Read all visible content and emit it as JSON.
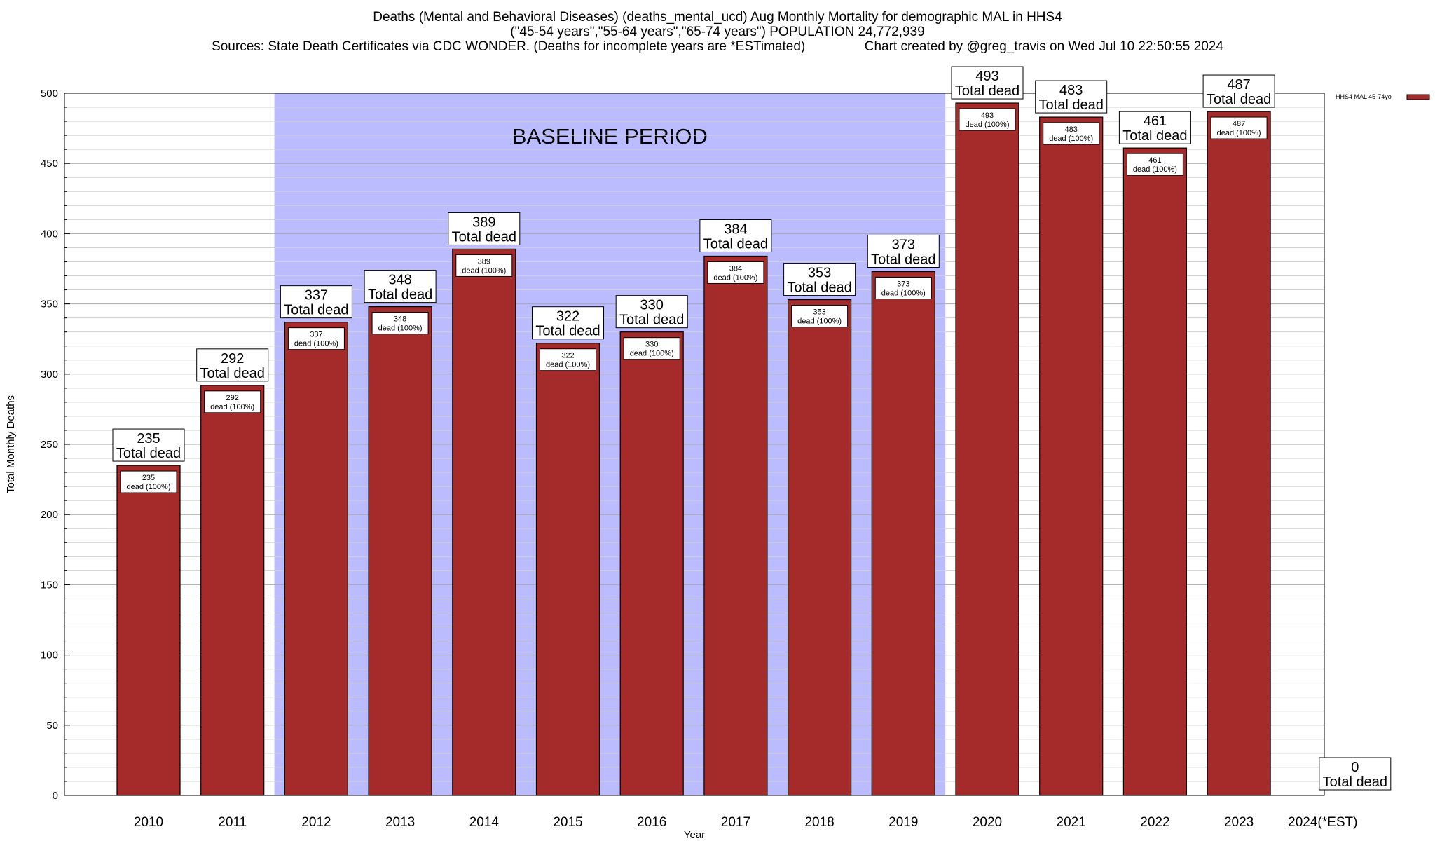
{
  "header": {
    "title_line1": "Deaths (Mental and Behavioral Diseases) (deaths_mental_ucd) Aug Monthly Mortality for demographic MAL in HHS4",
    "title_line2": "(\"45-54 years\",\"55-64 years\",\"65-74 years\") POPULATION 24,772,939",
    "title_line3": "Sources: State Death Certificates via CDC WONDER. (Deaths for incomplete years are *ESTimated)                Chart created by @greg_travis on Wed Jul 10 22:50:55 2024"
  },
  "chart_data": {
    "type": "bar",
    "xlabel": "Year",
    "ylabel": "Total Monthly Deaths",
    "ylim": [
      0,
      500
    ],
    "y_ticks": [
      0,
      50,
      100,
      150,
      200,
      250,
      300,
      350,
      400,
      450,
      500
    ],
    "categories": [
      "2010",
      "2011",
      "2012",
      "2013",
      "2014",
      "2015",
      "2016",
      "2017",
      "2018",
      "2019",
      "2020",
      "2021",
      "2022",
      "2023",
      "2024(*EST)"
    ],
    "series": [
      {
        "name": "HHS4 MAL 45-74yo",
        "values": [
          235,
          292,
          337,
          348,
          389,
          322,
          330,
          384,
          353,
          373,
          493,
          483,
          461,
          487,
          0
        ],
        "color": "#a52a2a"
      }
    ],
    "top_label_suffix": "Total dead",
    "inner_label_suffix": "dead (100%)",
    "baseline_period": {
      "label": "BASELINE PERIOD",
      "from": "2012",
      "to": "2019",
      "color": "#bbbbff"
    },
    "legend_position": "top-right",
    "grid": "horizontal"
  }
}
